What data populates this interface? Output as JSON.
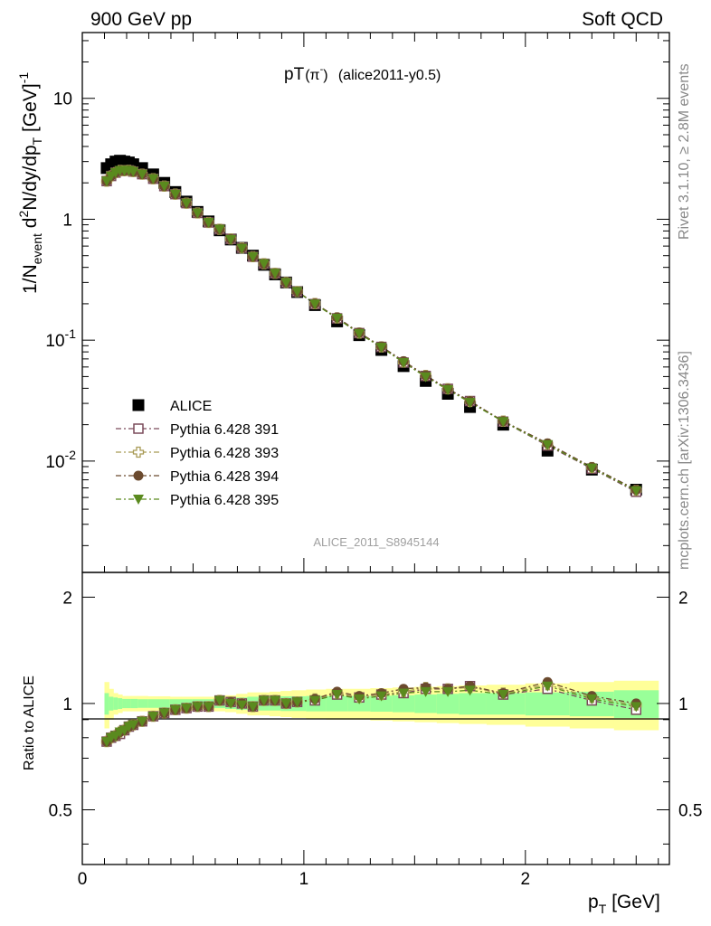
{
  "header": {
    "left": "900 GeV pp",
    "right": "Soft QCD",
    "plot_title_main": "pT",
    "plot_title_particle": "(π",
    "plot_title_charge": "-",
    "plot_title_close": ")",
    "plot_title_tag": "(alice2011-y0.5)",
    "analysis_label": "ALICE_2011_S8945144",
    "side_rivet": "Rivet 3.1.10, ≥ 2.8M events",
    "side_mcplots": "mcplots.cern.ch [arXiv:1306.3436]"
  },
  "axes": {
    "ylabel_main": "1/N",
    "ylabel_main_sub": "event",
    "ylabel_main_rest": " d",
    "ylabel_main_sup": "2",
    "ylabel_main_rest2": "N/dy/dp",
    "ylabel_main_sub2": "T",
    "ylabel_main_units": " [GeV]",
    "ylabel_main_units_sup": "-1",
    "ylabel_ratio": "Ratio to ALICE",
    "xlabel": "p",
    "xlabel_sub": "T",
    "xlabel_units": " [GeV]",
    "main_ticks": [
      {
        "base": "10",
        "exp": "-2",
        "value": 0.01
      },
      {
        "base": "10",
        "exp": "-1",
        "value": 0.1
      },
      {
        "base": "1",
        "exp": "",
        "value": 1
      },
      {
        "base": "10",
        "exp": "",
        "value": 10
      }
    ],
    "ratio_ticks": [
      "0.5",
      "1",
      "2"
    ],
    "x_ticks": [
      "0",
      "1",
      "2"
    ]
  },
  "chart_data": {
    "type": "scatter",
    "title": "pT(π-) (alice2011-y0.5)",
    "xlim": [
      0,
      2.65
    ],
    "ylim": [
      0.0012,
      35
    ],
    "yscale": "log",
    "ratio_ylim": [
      0.35,
      2.35
    ],
    "ratio_yscale": "log",
    "legend_position": "lower-left",
    "x": [
      0.11,
      0.13,
      0.15,
      0.17,
      0.19,
      0.21,
      0.23,
      0.27,
      0.32,
      0.37,
      0.42,
      0.47,
      0.52,
      0.57,
      0.62,
      0.67,
      0.72,
      0.77,
      0.82,
      0.87,
      0.92,
      0.97,
      1.05,
      1.15,
      1.25,
      1.35,
      1.45,
      1.55,
      1.65,
      1.75,
      1.9,
      2.1,
      2.3,
      2.5
    ],
    "series": [
      {
        "name": "ALICE",
        "color": "#000000",
        "marker": "filled-square",
        "values": [
          2.65,
          2.85,
          3.0,
          3.05,
          3.0,
          2.95,
          2.85,
          2.65,
          2.35,
          2.0,
          1.68,
          1.4,
          1.15,
          0.96,
          0.81,
          0.68,
          0.58,
          0.5,
          0.42,
          0.35,
          0.3,
          0.25,
          0.195,
          0.143,
          0.11,
          0.083,
          0.061,
          0.046,
          0.036,
          0.028,
          0.02,
          0.0122,
          0.0085,
          0.0058
        ],
        "errors_rel_stat": [
          0.07,
          0.045,
          0.04,
          0.035,
          0.03,
          0.03,
          0.03,
          0.028,
          0.028,
          0.028,
          0.028,
          0.028,
          0.028,
          0.028,
          0.03,
          0.035,
          0.04,
          0.045,
          0.045,
          0.045,
          0.048,
          0.048,
          0.05,
          0.05,
          0.05,
          0.052,
          0.055,
          0.06,
          0.065,
          0.07,
          0.07,
          0.075,
          0.08,
          0.09
        ],
        "errors_rel_total": [
          0.15,
          0.1,
          0.07,
          0.06,
          0.05,
          0.05,
          0.05,
          0.05,
          0.048,
          0.048,
          0.045,
          0.045,
          0.045,
          0.045,
          0.05,
          0.055,
          0.065,
          0.075,
          0.075,
          0.08,
          0.085,
          0.09,
          0.095,
          0.1,
          0.1,
          0.105,
          0.11,
          0.115,
          0.12,
          0.125,
          0.13,
          0.14,
          0.15,
          0.16
        ]
      },
      {
        "name": "Pythia 6.428 391",
        "color": "#7a4a5a",
        "marker": "open-square",
        "line": "dash-dot",
        "ratio": [
          0.78,
          0.8,
          0.81,
          0.82,
          0.84,
          0.86,
          0.87,
          0.89,
          0.92,
          0.94,
          0.96,
          0.97,
          0.98,
          0.98,
          1.02,
          1.01,
          1.0,
          0.98,
          1.02,
          1.02,
          1.0,
          1.01,
          1.02,
          1.06,
          1.04,
          1.06,
          1.07,
          1.1,
          1.1,
          1.12,
          1.06,
          1.1,
          1.02,
          0.96
        ]
      },
      {
        "name": "Pythia 6.428 393",
        "color": "#a89a55",
        "marker": "open-cross",
        "line": "dash-dot",
        "ratio": [
          0.78,
          0.8,
          0.81,
          0.83,
          0.84,
          0.86,
          0.87,
          0.89,
          0.92,
          0.94,
          0.96,
          0.97,
          0.98,
          0.98,
          1.02,
          1.01,
          1.0,
          0.98,
          1.02,
          1.02,
          1.0,
          1.01,
          1.03,
          1.07,
          1.04,
          1.06,
          1.08,
          1.11,
          1.1,
          1.11,
          1.07,
          1.13,
          1.04,
          0.99
        ]
      },
      {
        "name": "Pythia 6.428 394",
        "color": "#6b4a2e",
        "marker": "filled-circle",
        "line": "dash-dot",
        "ratio": [
          0.78,
          0.8,
          0.81,
          0.83,
          0.84,
          0.86,
          0.87,
          0.89,
          0.92,
          0.94,
          0.96,
          0.97,
          0.98,
          0.98,
          1.02,
          1.01,
          1.0,
          0.98,
          1.02,
          1.02,
          1.0,
          1.01,
          1.03,
          1.08,
          1.05,
          1.07,
          1.1,
          1.11,
          1.1,
          1.12,
          1.07,
          1.15,
          1.05,
          1.0
        ]
      },
      {
        "name": "Pythia 6.428 395",
        "color": "#5a8a1e",
        "marker": "filled-triangle-down",
        "line": "dash-dot",
        "ratio": [
          0.78,
          0.8,
          0.81,
          0.83,
          0.84,
          0.86,
          0.87,
          0.89,
          0.92,
          0.94,
          0.96,
          0.97,
          0.98,
          0.98,
          1.02,
          1.0,
          0.99,
          0.98,
          1.02,
          1.02,
          1.0,
          1.01,
          1.02,
          1.06,
          1.03,
          1.05,
          1.07,
          1.08,
          1.08,
          1.09,
          1.06,
          1.12,
          1.03,
          0.98
        ]
      }
    ]
  }
}
